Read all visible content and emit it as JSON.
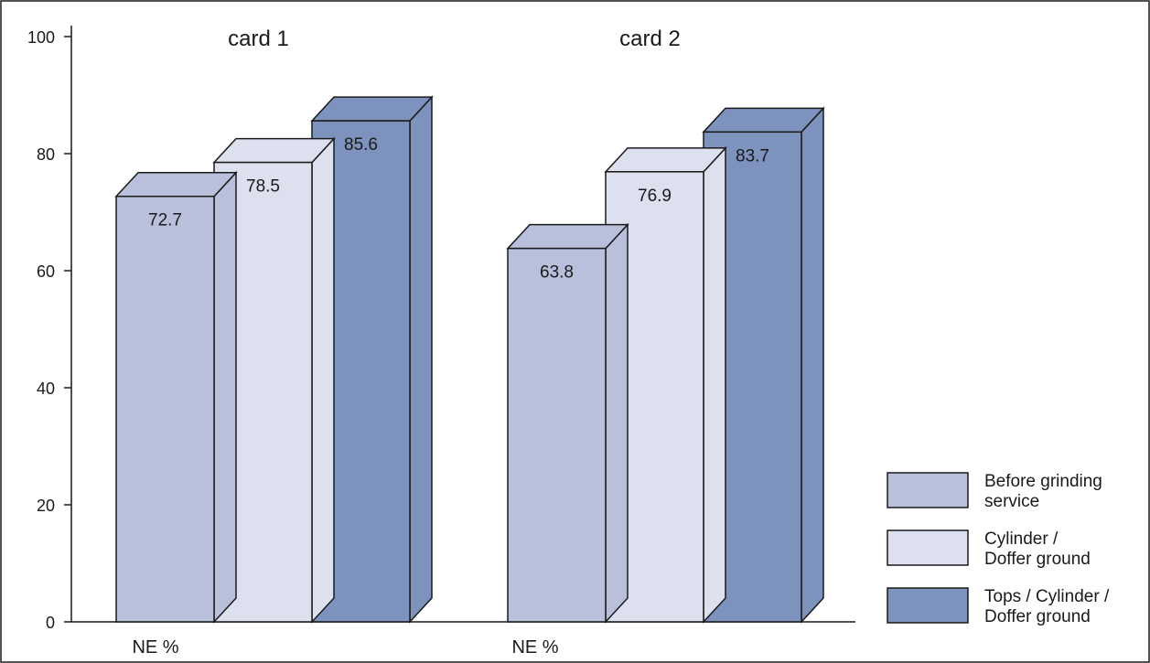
{
  "chart_data": {
    "type": "bar",
    "categories": [
      "card 1",
      "card 2"
    ],
    "category_axis_labels": [
      "NE %",
      "NE %"
    ],
    "series": [
      {
        "name": "Before grinding service",
        "legend_lines": [
          "Before grinding",
          "service"
        ],
        "color": "#b8c0dc",
        "values": [
          72.7,
          63.8
        ]
      },
      {
        "name": "Cylinder / Doffer ground",
        "legend_lines": [
          "Cylinder /",
          "Doffer ground"
        ],
        "color": "#dde0ee",
        "values": [
          78.5,
          76.9
        ]
      },
      {
        "name": "Tops / Cylinder / Doffer ground",
        "legend_lines": [
          "Tops / Cylinder /",
          "Doffer ground"
        ],
        "color": "#7d92bc",
        "values": [
          85.6,
          83.7
        ]
      }
    ],
    "value_labels": [
      [
        "72.7",
        "63.8"
      ],
      [
        "78.5",
        "76.9"
      ],
      [
        "85.6",
        "83.7"
      ]
    ],
    "ylim": [
      0,
      100
    ],
    "yticks": [
      0,
      20,
      40,
      60,
      80,
      100
    ],
    "ytick_labels": [
      "0",
      "20",
      "40",
      "60",
      "80",
      "100"
    ],
    "bar_style": "3d",
    "grid": false,
    "legend_position": "bottom-right"
  }
}
